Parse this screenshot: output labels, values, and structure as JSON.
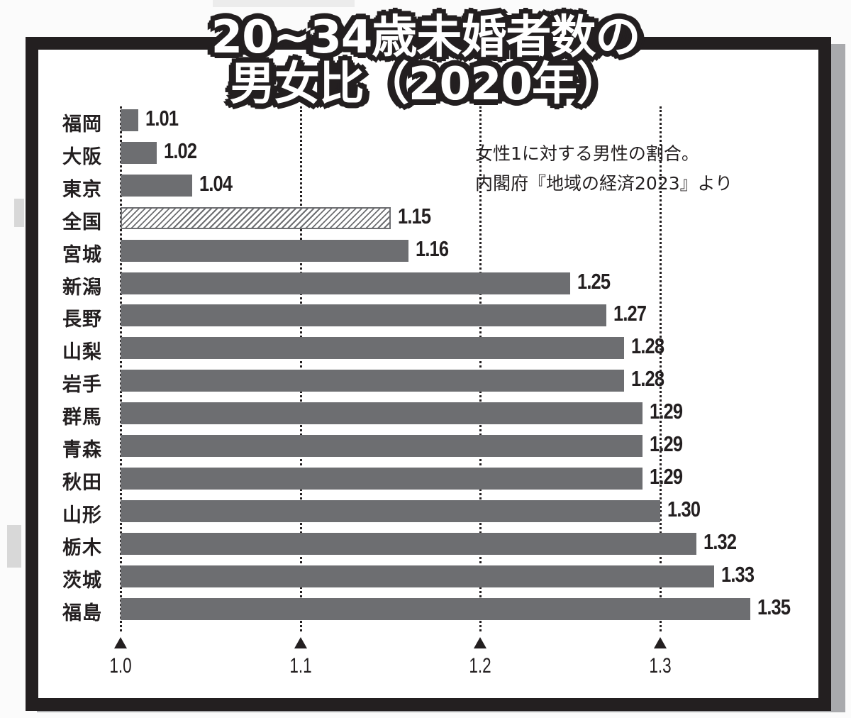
{
  "title": {
    "line1": "20~34歳未婚者数の",
    "line2": "男女比（2020年）"
  },
  "note": {
    "line1": "女性1に対する男性の割合。",
    "line2": "内閣府『地域の経済2023』より"
  },
  "axis": {
    "ticks": [
      "1.0",
      "1.1",
      "1.2",
      "1.3"
    ]
  },
  "colors": {
    "bar": "#6d6e71",
    "frame": "#231f20",
    "shadow": "#a9aaad"
  },
  "chart_data": {
    "type": "bar",
    "orientation": "horizontal",
    "title": "20~34歳未婚者数の男女比（2020年）",
    "subtitle": "女性1に対する男性の割合。内閣府『地域の経済2023』より",
    "categories": [
      "福岡",
      "大阪",
      "東京",
      "全国",
      "宮城",
      "新潟",
      "長野",
      "山梨",
      "岩手",
      "群馬",
      "青森",
      "秋田",
      "山形",
      "栃木",
      "茨城",
      "福島"
    ],
    "values": [
      1.01,
      1.02,
      1.04,
      1.15,
      1.16,
      1.25,
      1.27,
      1.28,
      1.28,
      1.29,
      1.29,
      1.29,
      1.3,
      1.32,
      1.33,
      1.35
    ],
    "value_labels": [
      "1.01",
      "1.02",
      "1.04",
      "1.15",
      "1.16",
      "1.25",
      "1.27",
      "1.28",
      "1.28",
      "1.29",
      "1.29",
      "1.29",
      "1.30",
      "1.32",
      "1.33",
      "1.35"
    ],
    "highlight": {
      "category": "全国",
      "style": "hatched"
    },
    "xlabel": "",
    "ylabel": "",
    "xlim": [
      1.0,
      1.35
    ],
    "xticks": [
      1.0,
      1.1,
      1.2,
      1.3
    ],
    "grid": "dotted vertical lines at ticks",
    "legend": "none"
  }
}
